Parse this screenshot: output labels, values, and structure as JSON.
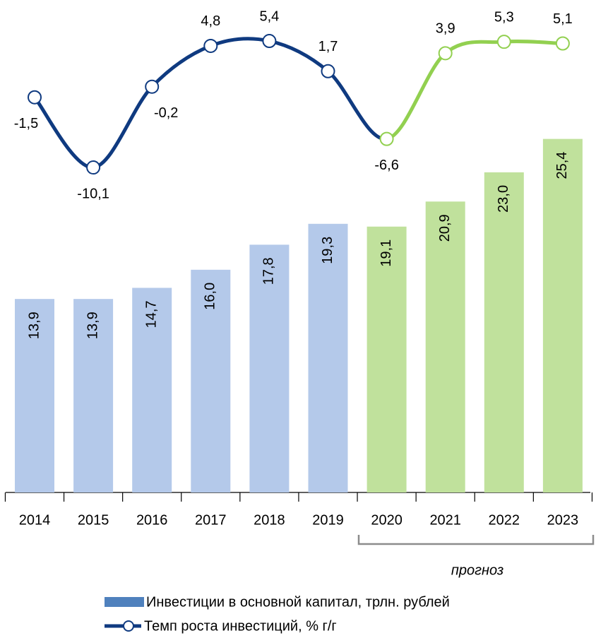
{
  "chart_data": {
    "type": "bar_line",
    "categories": [
      "2014",
      "2015",
      "2016",
      "2017",
      "2018",
      "2019",
      "2020",
      "2021",
      "2022",
      "2023"
    ],
    "series": [
      {
        "name": "Инвестиции в основной капитал, трлн. рублей",
        "color": "#4f81bd",
        "colors": [
          "#b4c9ea",
          "#b4c9ea",
          "#b4c9ea",
          "#b4c9ea",
          "#b4c9ea",
          "#b4c9ea",
          "#c0e19c",
          "#c0e19c",
          "#c0e19c",
          "#c0e19c"
        ],
        "values": [
          13.9,
          13.9,
          14.7,
          16.0,
          17.8,
          19.3,
          19.1,
          20.9,
          23.0,
          25.4
        ],
        "value_labels": [
          "13,9",
          "13,9",
          "14,7",
          "16,0",
          "17,8",
          "19,3",
          "19,1",
          "20,9",
          "23,0",
          "25,4"
        ]
      },
      {
        "name": "Темп роста инвестиций, % г/г",
        "color": "#0f3a80",
        "colors": [
          "#0f3a80",
          "#0f3a80",
          "#0f3a80",
          "#0f3a80",
          "#0f3a80",
          "#0f3a80",
          "#92d050",
          "#92d050",
          "#92d050",
          "#92d050"
        ],
        "label_colors": [
          "#1f4e99",
          "#1f4e99",
          "#1f4e99",
          "#1f4e99",
          "#1f4e99",
          "#1f4e99",
          "#3f9a3a",
          "#3f9a3a",
          "#3f9a3a",
          "#3f9a3a"
        ],
        "values": [
          -1.5,
          -10.1,
          -0.2,
          4.8,
          5.4,
          1.7,
          -6.6,
          3.9,
          5.3,
          5.1
        ],
        "value_labels": [
          "-1,5",
          "-10,1",
          "-0,2",
          "4,8",
          "5,4",
          "1,7",
          "-6,6",
          "3,9",
          "5,3",
          "5,1"
        ]
      }
    ],
    "annotation": "прогноз"
  }
}
